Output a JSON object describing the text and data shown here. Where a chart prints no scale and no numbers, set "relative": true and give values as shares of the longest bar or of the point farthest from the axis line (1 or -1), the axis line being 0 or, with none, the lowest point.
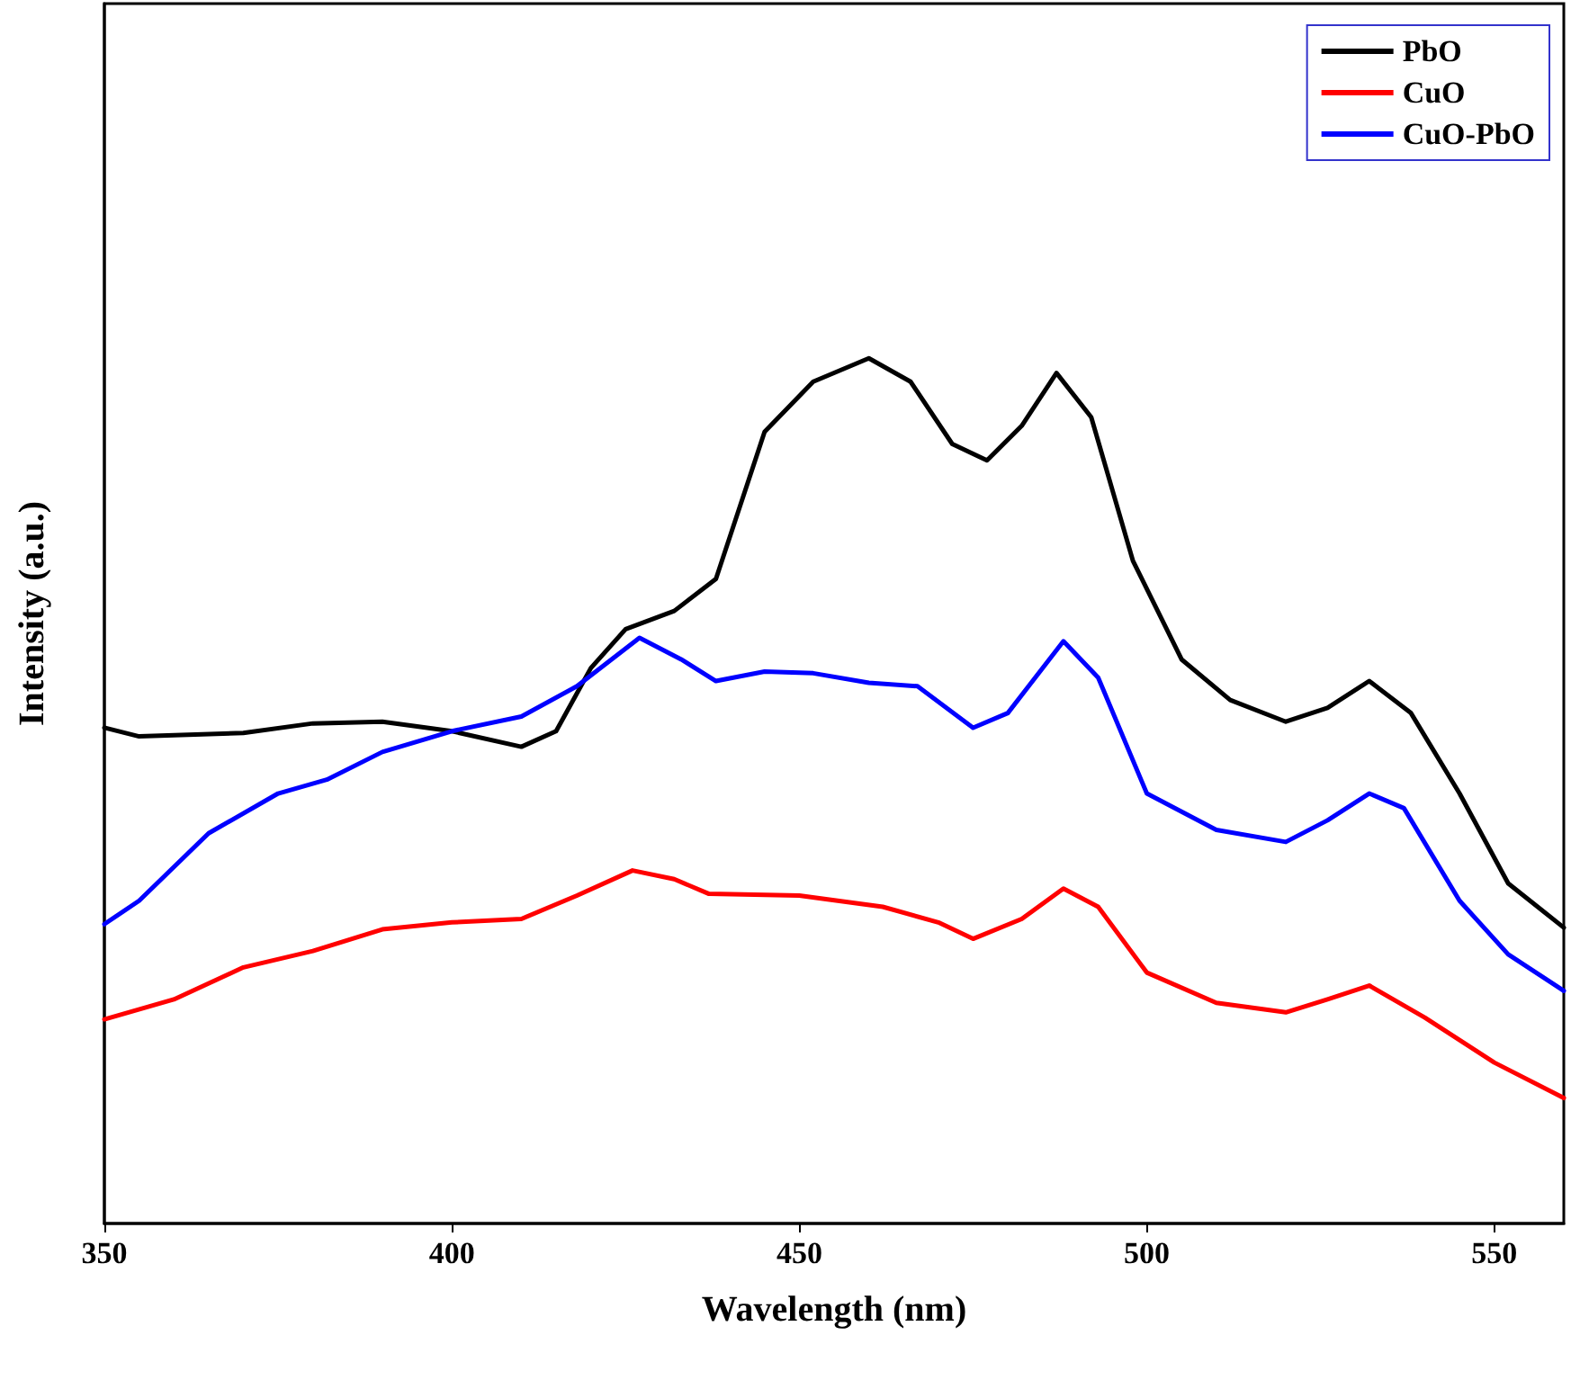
{
  "chart_data": {
    "type": "line",
    "xlabel": "Wavelength (nm)",
    "ylabel": "Intensity (a.u.)",
    "relative": true,
    "xlim": [
      350,
      560
    ],
    "xticks": [
      350,
      400,
      450,
      500,
      550
    ],
    "grid": false,
    "legend": "top right",
    "marker": "none",
    "line_style": "solid",
    "series": [
      {
        "name": "PbO",
        "color": "#000000",
        "x": [
          350,
          355,
          370,
          380,
          390,
          400,
          410,
          415,
          420,
          425,
          432,
          438,
          445,
          452,
          460,
          466,
          472,
          477,
          482,
          487,
          492,
          498,
          505,
          512,
          520,
          526,
          532,
          538,
          545,
          552,
          560
        ],
        "values": [
          0.573,
          0.563,
          0.567,
          0.578,
          0.58,
          0.569,
          0.551,
          0.569,
          0.642,
          0.687,
          0.708,
          0.745,
          0.915,
          0.973,
          1.0,
          0.973,
          0.901,
          0.882,
          0.922,
          0.983,
          0.932,
          0.766,
          0.652,
          0.605,
          0.58,
          0.596,
          0.627,
          0.59,
          0.497,
          0.393,
          0.342
        ]
      },
      {
        "name": "CuO",
        "color": "#ff0000",
        "x": [
          350,
          360,
          370,
          380,
          390,
          400,
          410,
          418,
          426,
          432,
          437,
          450,
          462,
          470,
          475,
          482,
          488,
          493,
          500,
          510,
          520,
          526,
          532,
          540,
          550,
          560
        ],
        "values": [
          0.236,
          0.259,
          0.296,
          0.315,
          0.34,
          0.348,
          0.352,
          0.379,
          0.408,
          0.398,
          0.381,
          0.379,
          0.366,
          0.348,
          0.329,
          0.352,
          0.387,
          0.366,
          0.29,
          0.255,
          0.244,
          0.259,
          0.275,
          0.238,
          0.186,
          0.145
        ]
      },
      {
        "name": "CuO-PbO",
        "color": "#0000ff",
        "x": [
          350,
          355,
          365,
          375,
          382,
          390,
          400,
          410,
          418,
          427,
          433,
          438,
          445,
          452,
          460,
          467,
          475,
          480,
          488,
          493,
          500,
          510,
          520,
          526,
          532,
          537,
          545,
          552,
          560
        ],
        "values": [
          0.346,
          0.373,
          0.451,
          0.497,
          0.513,
          0.545,
          0.569,
          0.586,
          0.621,
          0.677,
          0.652,
          0.627,
          0.638,
          0.636,
          0.625,
          0.621,
          0.573,
          0.59,
          0.673,
          0.631,
          0.497,
          0.455,
          0.441,
          0.466,
          0.497,
          0.48,
          0.373,
          0.311,
          0.269
        ]
      }
    ]
  }
}
